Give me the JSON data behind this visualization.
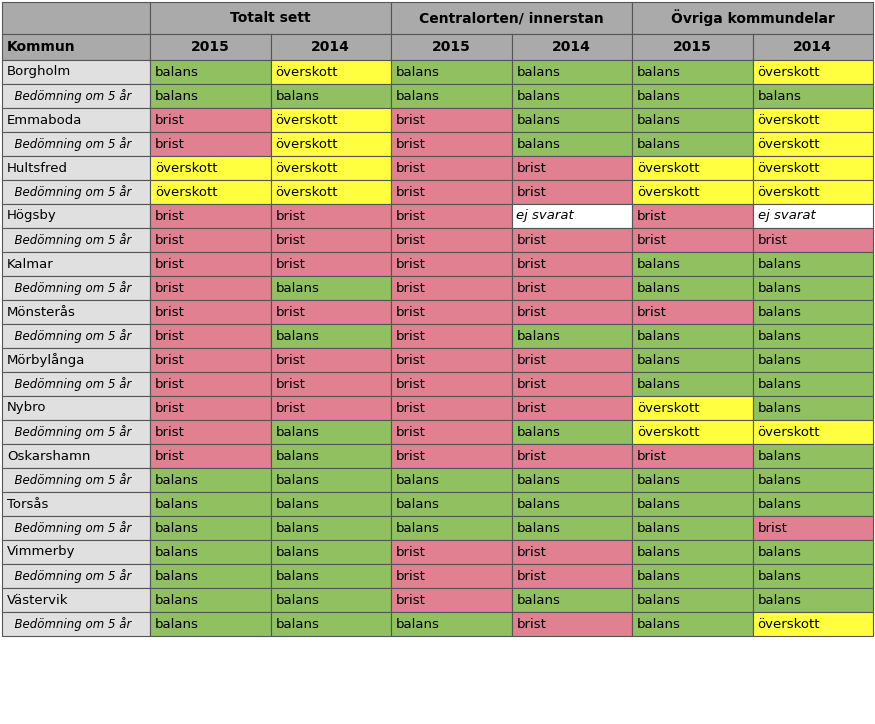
{
  "header_row1": [
    "",
    "Totalt sett",
    "Centralorten/ innerstan",
    "Övriga kommundelar"
  ],
  "header_row2": [
    "Kommun",
    "2015",
    "2014",
    "2015",
    "2014",
    "2015",
    "2014"
  ],
  "rows": [
    {
      "kommun": "Borgholm",
      "sub": "Bedömning om 5 år",
      "values": [
        [
          "balans",
          "överskott",
          "balans",
          "balans",
          "balans",
          "överskott"
        ],
        [
          "balans",
          "balans",
          "balans",
          "balans",
          "balans",
          "balans"
        ]
      ]
    },
    {
      "kommun": "Emmaboda",
      "sub": "Bedömning om 5 år",
      "values": [
        [
          "brist",
          "överskott",
          "brist",
          "balans",
          "balans",
          "överskott"
        ],
        [
          "brist",
          "överskott",
          "brist",
          "balans",
          "balans",
          "överskott"
        ]
      ]
    },
    {
      "kommun": "Hultsfred",
      "sub": "Bedömning om 5 år",
      "values": [
        [
          "överskott",
          "överskott",
          "brist",
          "brist",
          "överskott",
          "överskott"
        ],
        [
          "överskott",
          "överskott",
          "brist",
          "brist",
          "överskott",
          "överskott"
        ]
      ]
    },
    {
      "kommun": "Högsby",
      "sub": "Bedömning om 5 år",
      "values": [
        [
          "brist",
          "brist",
          "brist",
          "ej svarat",
          "brist",
          "ej svarat"
        ],
        [
          "brist",
          "brist",
          "brist",
          "brist",
          "brist",
          "brist"
        ]
      ]
    },
    {
      "kommun": "Kalmar",
      "sub": "Bedömning om 5 år",
      "values": [
        [
          "brist",
          "brist",
          "brist",
          "brist",
          "balans",
          "balans"
        ],
        [
          "brist",
          "balans",
          "brist",
          "brist",
          "balans",
          "balans"
        ]
      ]
    },
    {
      "kommun": "Mönsterås",
      "sub": "Bedömning om 5 år",
      "values": [
        [
          "brist",
          "brist",
          "brist",
          "brist",
          "brist",
          "balans"
        ],
        [
          "brist",
          "balans",
          "brist",
          "balans",
          "balans",
          "balans"
        ]
      ]
    },
    {
      "kommun": "Mörbylånga",
      "sub": "Bedömning om 5 år",
      "values": [
        [
          "brist",
          "brist",
          "brist",
          "brist",
          "balans",
          "balans"
        ],
        [
          "brist",
          "brist",
          "brist",
          "brist",
          "balans",
          "balans"
        ]
      ]
    },
    {
      "kommun": "Nybro",
      "sub": "Bedömning om 5 år",
      "values": [
        [
          "brist",
          "brist",
          "brist",
          "brist",
          "överskott",
          "balans"
        ],
        [
          "brist",
          "balans",
          "brist",
          "balans",
          "överskott",
          "överskott"
        ]
      ]
    },
    {
      "kommun": "Oskarshamn",
      "sub": "Bedömning om 5 år",
      "values": [
        [
          "brist",
          "balans",
          "brist",
          "brist",
          "brist",
          "balans"
        ],
        [
          "balans",
          "balans",
          "balans",
          "balans",
          "balans",
          "balans"
        ]
      ]
    },
    {
      "kommun": "Torsås",
      "sub": "Bedömning om 5 år",
      "values": [
        [
          "balans",
          "balans",
          "balans",
          "balans",
          "balans",
          "balans"
        ],
        [
          "balans",
          "balans",
          "balans",
          "balans",
          "balans",
          "brist"
        ]
      ]
    },
    {
      "kommun": "Vimmerby",
      "sub": "Bedömning om 5 år",
      "values": [
        [
          "balans",
          "balans",
          "brist",
          "brist",
          "balans",
          "balans"
        ],
        [
          "balans",
          "balans",
          "brist",
          "brist",
          "balans",
          "balans"
        ]
      ]
    },
    {
      "kommun": "Västervik",
      "sub": "Bedömning om 5 år",
      "values": [
        [
          "balans",
          "balans",
          "brist",
          "balans",
          "balans",
          "balans"
        ],
        [
          "balans",
          "balans",
          "balans",
          "brist",
          "balans",
          "överskott"
        ]
      ]
    }
  ],
  "colors": {
    "balans": "#90c060",
    "brist": "#e08090",
    "överskott": "#ffff40",
    "ej svarat": "#ffffff",
    "header_bg": "#aaaaaa",
    "kommune_bg": "#e0e0e0",
    "border": "#555555"
  },
  "figwidth": 8.75,
  "figheight": 7.24,
  "dpi": 100
}
